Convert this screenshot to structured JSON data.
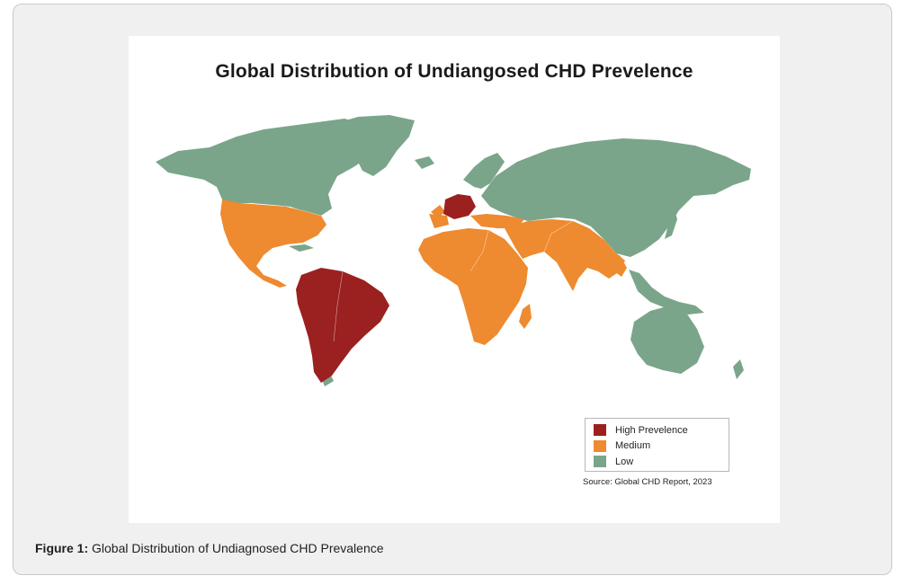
{
  "map": {
    "title": "Global Distribution of Undiangosed CHD Prevelence",
    "source": "Source: Global CHD Report, 2023",
    "colors": {
      "high": "#9b2020",
      "medium": "#ee8a2f",
      "low": "#7aa58a"
    },
    "legend": [
      {
        "label": "High Prevelence",
        "color": "#9b2020"
      },
      {
        "label": "Medium",
        "color": "#ee8a2f"
      },
      {
        "label": "Low",
        "color": "#7aa58a"
      }
    ]
  },
  "caption": {
    "label": "Figure 1:",
    "text": " Global Distribution of Undiagnosed CHD Prevalence"
  }
}
